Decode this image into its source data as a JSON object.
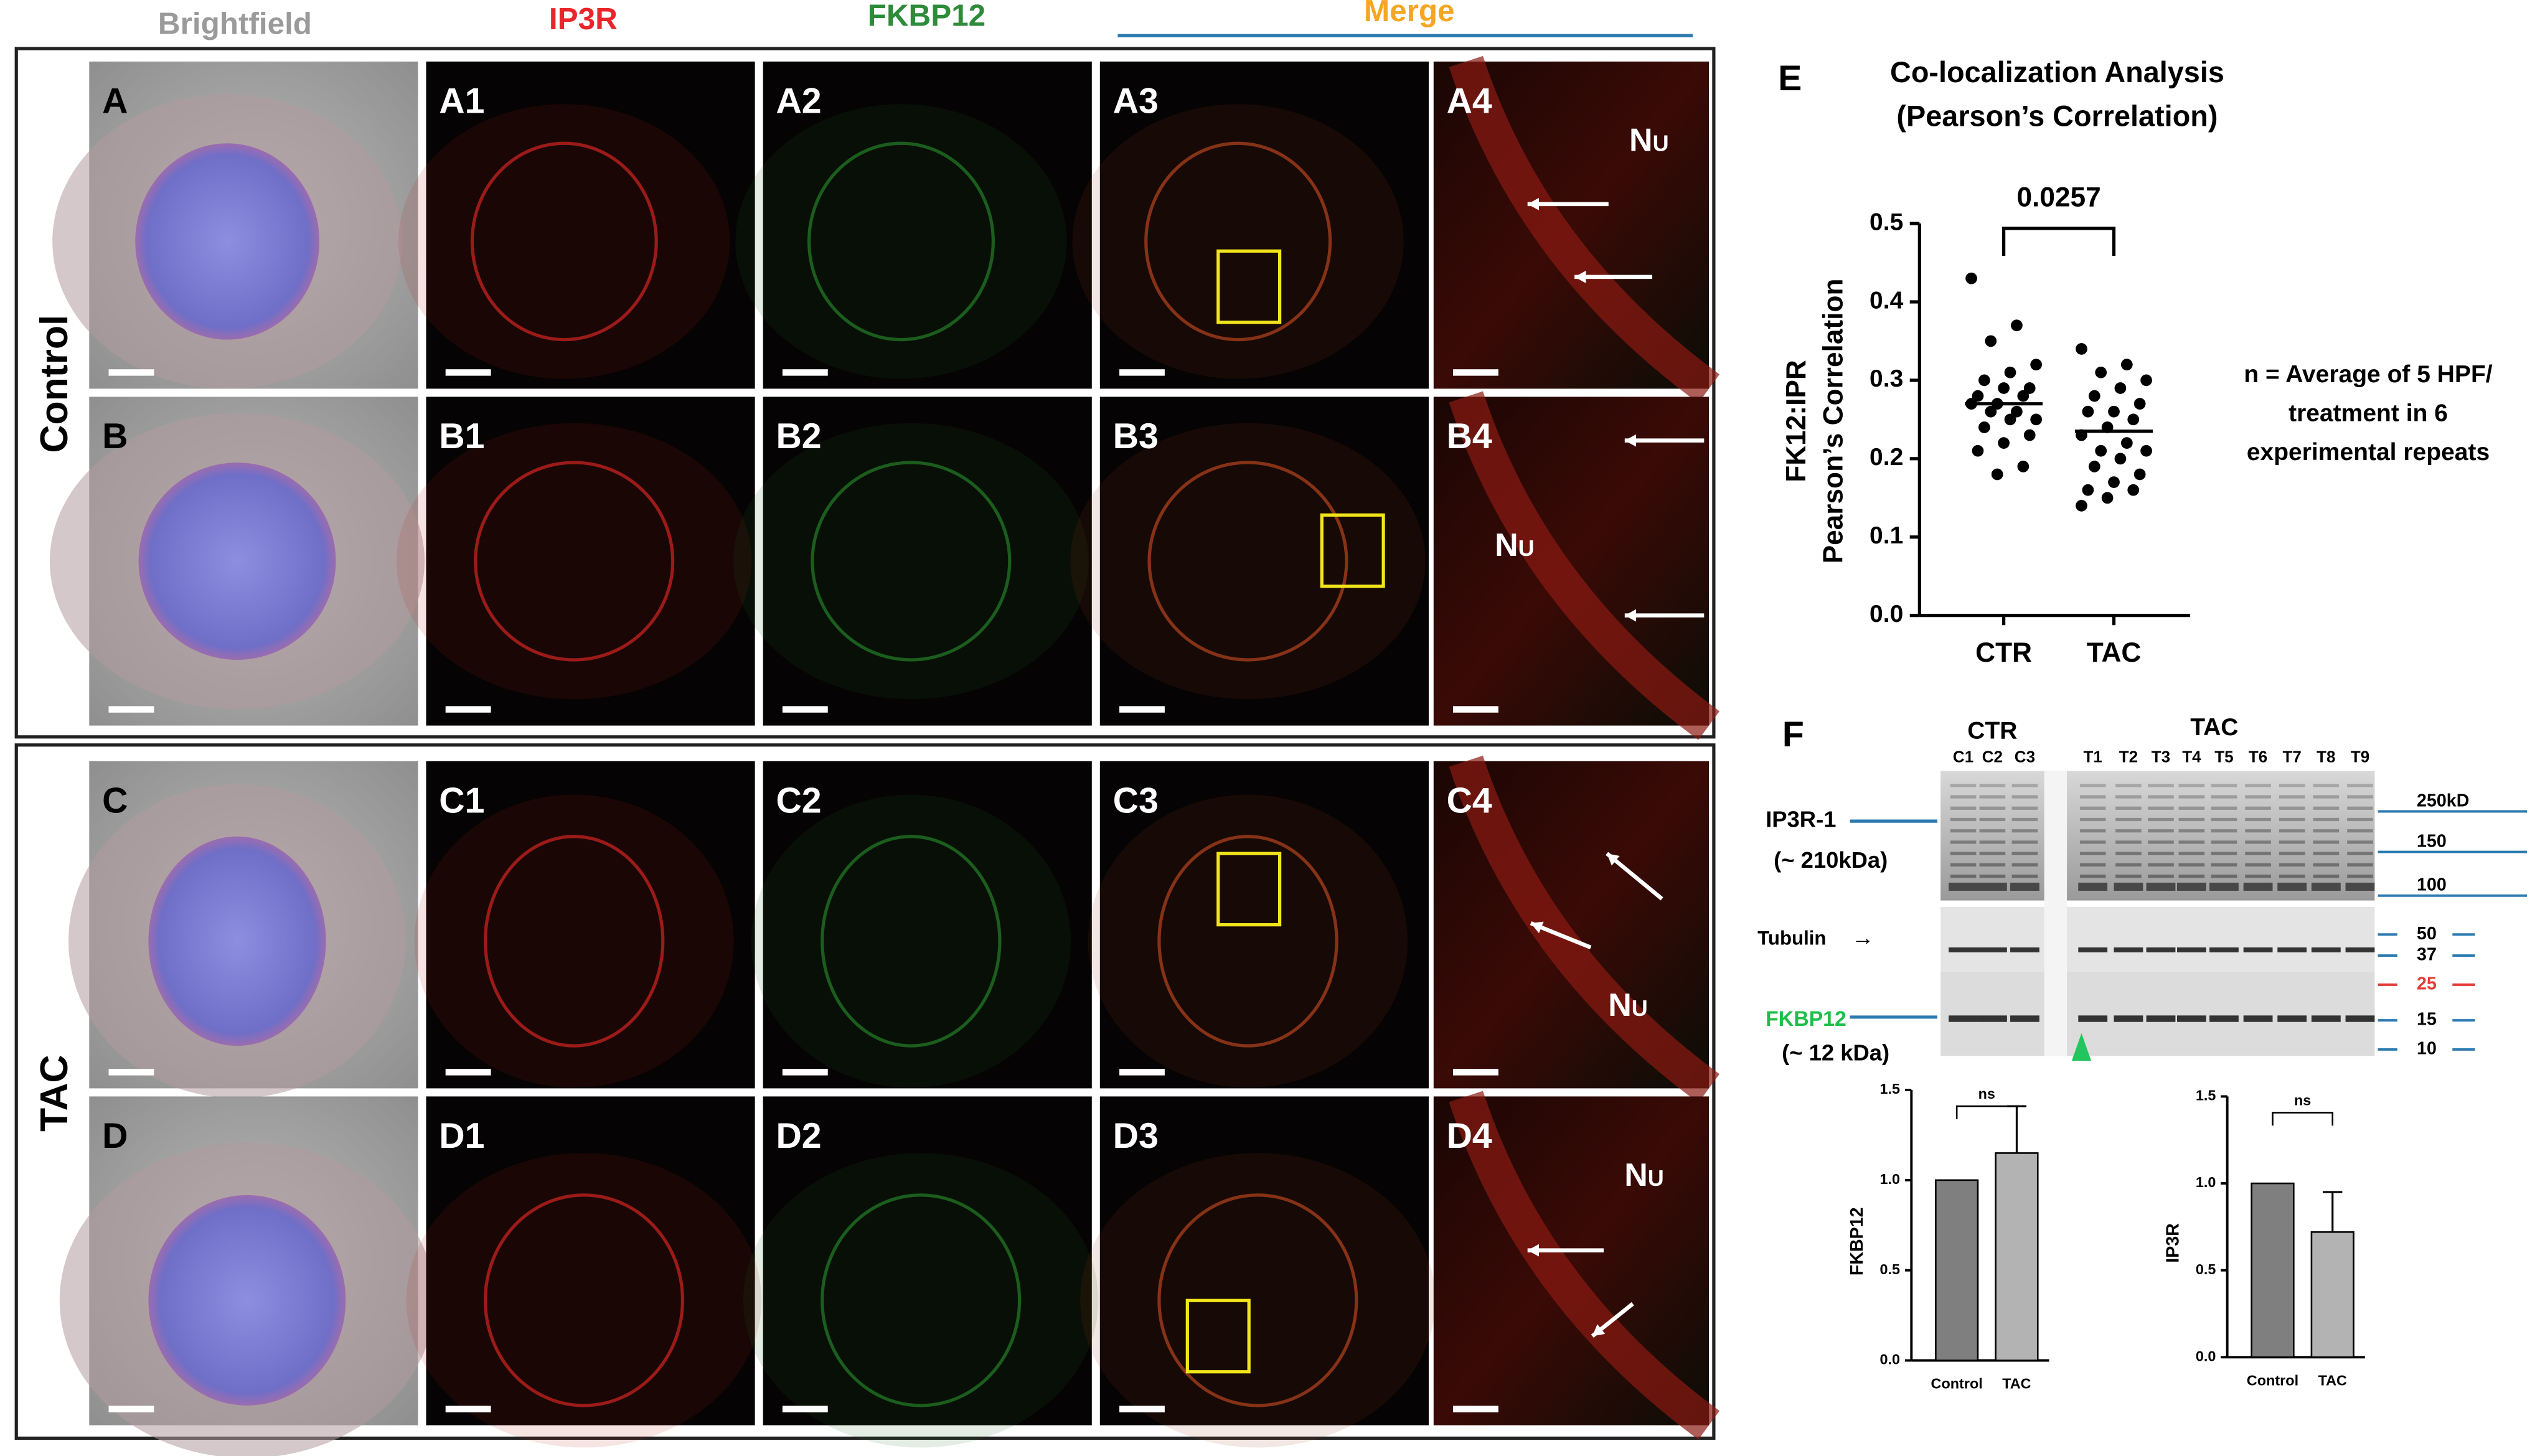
{
  "columns": [
    "Brightfield",
    "IP3R",
    "FKBP12",
    "Merge"
  ],
  "groups": [
    "Control",
    "TAC"
  ],
  "panel_labels": [
    [
      "A",
      "A1",
      "A2",
      "A3",
      "A4"
    ],
    [
      "B",
      "B1",
      "B2",
      "B3",
      "B4"
    ],
    [
      "C",
      "C1",
      "C2",
      "C3",
      "C4"
    ],
    [
      "D",
      "D1",
      "D2",
      "D3",
      "D4"
    ]
  ],
  "zoom_labels": [
    "Nu",
    "Nu",
    "Nu",
    "Nu"
  ],
  "panel_e": {
    "label": "E",
    "note": [
      "n = Average of 5 HPF/",
      "treatment in 6",
      "experimental repeats"
    ]
  },
  "panel_f": {
    "label": "F",
    "groups": [
      "CTR",
      "TAC"
    ],
    "lanes": [
      "C1",
      "C2",
      "C3",
      "T1",
      "T2",
      "T3",
      "T4",
      "T5",
      "T6",
      "T7",
      "T8",
      "T9"
    ],
    "proteins": [
      "IP3R-1",
      "(~ 210kDa)",
      "Tubulin",
      "→",
      "FKBP12",
      "(~ 12 kDa)"
    ],
    "markers": [
      "250kD",
      "150",
      "100",
      "50",
      "37",
      "25",
      "15",
      "10"
    ]
  },
  "chart_data": [
    {
      "type": "scatter",
      "title": [
        "Co-localization Analysis",
        "(Pearson’s Correlation)"
      ],
      "y_label": [
        "FK12:IPR",
        "Pearson’s Correlation"
      ],
      "categories": [
        "CTR",
        "TAC"
      ],
      "values": [
        [
          0.43,
          0.37,
          0.35,
          0.32,
          0.31,
          0.3,
          0.29,
          0.29,
          0.28,
          0.28,
          0.27,
          0.27,
          0.26,
          0.26,
          0.25,
          0.25,
          0.24,
          0.23,
          0.22,
          0.21,
          0.19,
          0.18
        ],
        [
          0.34,
          0.32,
          0.31,
          0.3,
          0.29,
          0.28,
          0.27,
          0.26,
          0.26,
          0.25,
          0.24,
          0.23,
          0.22,
          0.21,
          0.21,
          0.2,
          0.19,
          0.18,
          0.17,
          0.16,
          0.16,
          0.15,
          0.14
        ]
      ],
      "means": [
        0.27,
        0.235
      ],
      "annotation": "0.0257",
      "color": "#000000",
      "ylim": [
        0,
        0.5
      ],
      "yticks": [
        {
          "value": 0,
          "label": "0.0"
        },
        0.1,
        0.2,
        0.3,
        0.4,
        0.5
      ]
    },
    {
      "type": "bar",
      "y_label": "FKBP12",
      "categories": [
        "Control",
        "TAC"
      ],
      "values": [
        1.0,
        1.15
      ],
      "errors": [
        0,
        0.26
      ],
      "colors": [
        "#7f7f7f",
        "#b3b3b3"
      ],
      "annotation": "ns",
      "ylim": [
        0,
        1.5
      ],
      "yticks": [
        {
          "value": 0,
          "label": "0.0"
        },
        0.5,
        {
          "value": 1,
          "label": "1.0"
        },
        1.5
      ]
    },
    {
      "type": "bar",
      "y_label": "IP3R",
      "categories": [
        "Control",
        "TAC"
      ],
      "values": [
        1.0,
        0.72
      ],
      "errors": [
        0,
        0.23
      ],
      "colors": [
        "#7f7f7f",
        "#b3b3b3"
      ],
      "annotation": "ns",
      "ylim": [
        0,
        1.5
      ],
      "yticks": [
        {
          "value": 0,
          "label": "0.0"
        },
        0.5,
        {
          "value": 1,
          "label": "1.0"
        },
        1.5
      ]
    }
  ]
}
